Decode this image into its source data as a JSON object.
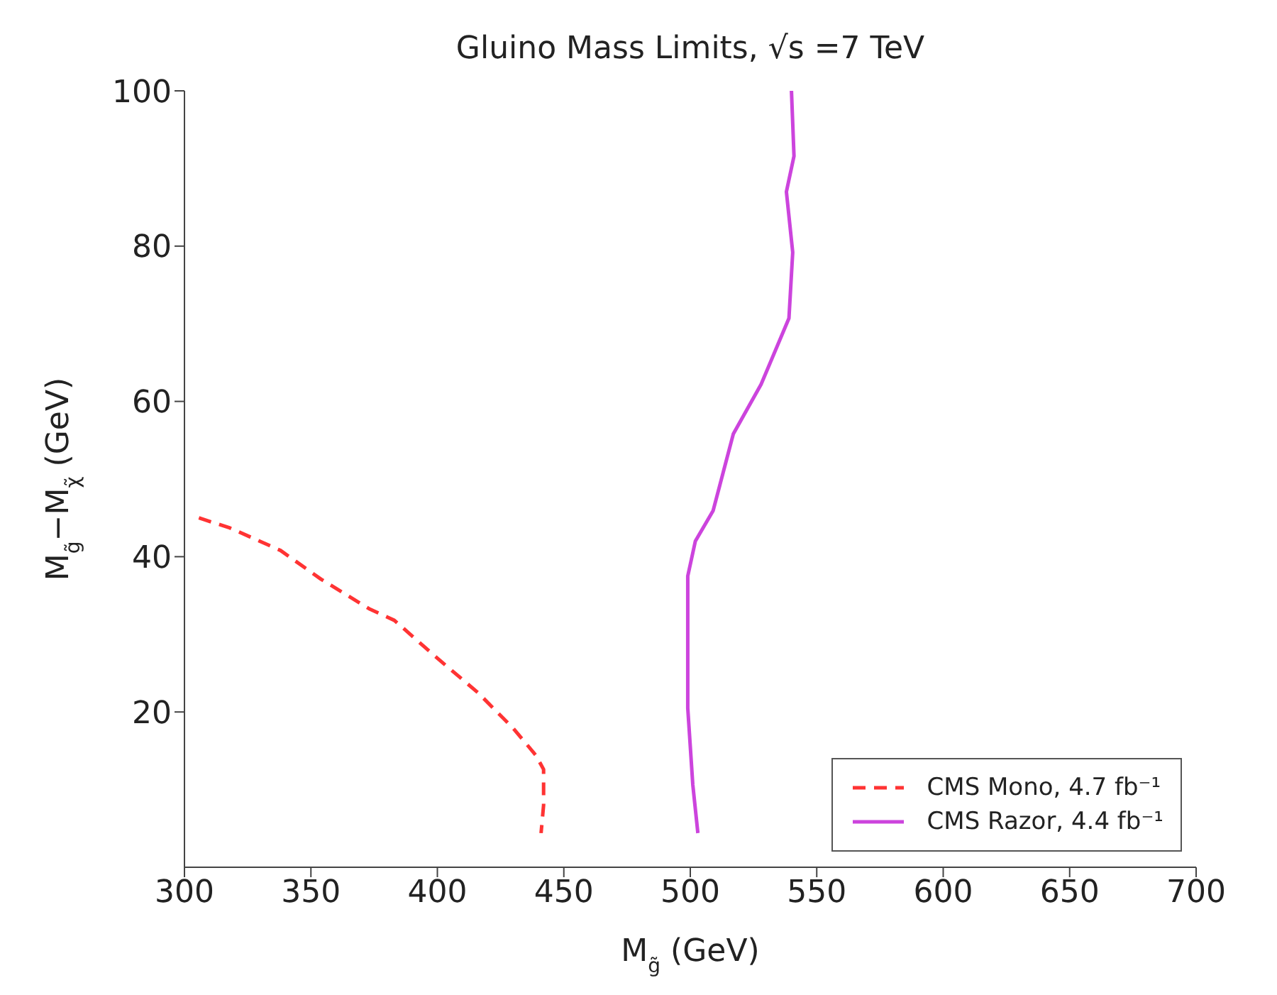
{
  "chart_data": {
    "type": "line",
    "title": "Gluino Mass Limits, √s =7 TeV",
    "xlabel": "M$_{g̃}$ (GeV)",
    "ylabel": "M$_{g̃}$−M$_{χ̃}$ (GeV)",
    "xlim": [
      300,
      700
    ],
    "xticks": [
      300,
      350,
      400,
      450,
      500,
      550,
      600,
      650,
      700
    ],
    "ylim": [
      0,
      100
    ],
    "yticks": [
      20,
      40,
      60,
      80,
      100
    ],
    "legend": "bottom right",
    "series": [
      {
        "name": "CMS Mono, 4.7 fb⁻¹",
        "color": "#ff3333",
        "line_style": "dashed",
        "x": [
          305.7,
          318,
          338,
          354,
          373,
          383,
          399,
          416,
          430,
          439,
          442,
          442,
          441
        ],
        "values": [
          45.0,
          43.7,
          40.8,
          37.1,
          33.3,
          31.8,
          27.2,
          22.5,
          17.9,
          14.4,
          12.6,
          8,
          4.4
        ]
      },
      {
        "name": "CMS Razor, 4.4 fb⁻¹",
        "color": "#cc44dd",
        "line_style": "solid",
        "x": [
          540,
          541,
          538,
          540.5,
          539,
          528,
          517,
          509,
          502,
          499,
          499,
          501,
          503
        ],
        "values": [
          100,
          91.6,
          87,
          79.2,
          70.7,
          62.2,
          55.8,
          45.9,
          42,
          37.5,
          20.5,
          10.6,
          4.4
        ]
      }
    ]
  }
}
